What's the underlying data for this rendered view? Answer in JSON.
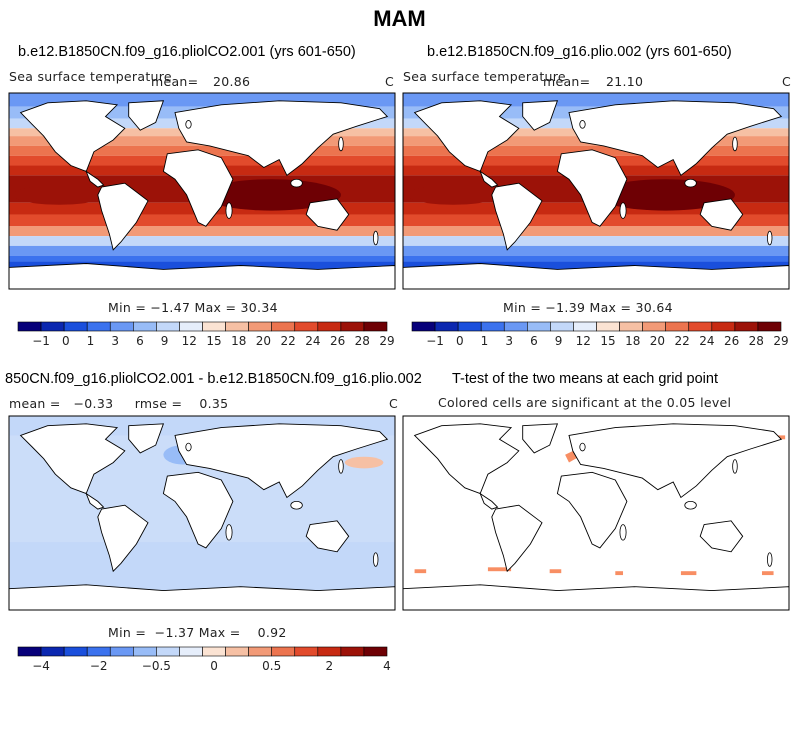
{
  "figure": {
    "title": "MAM"
  },
  "panels": [
    {
      "id": "p1",
      "title": "b.e12.B1850CN.f09_g16.pliolCO2.001 (yrs 601-650)",
      "left_label": "Sea surface temperature",
      "mean_label": "mean=",
      "mean_value": "20.86",
      "units": "C",
      "stats": "Min =  −1.47 Max =   30.34",
      "field": "sst"
    },
    {
      "id": "p2",
      "title": "b.e12.B1850CN.f09_g16.plio.002 (yrs 601-650)",
      "left_label": "Sea surface temperature",
      "mean_label": "mean=",
      "mean_value": "21.10",
      "units": "C",
      "stats": "Min =  −1.39 Max =   30.64",
      "field": "sst"
    },
    {
      "id": "p3",
      "title": "850CN.f09_g16.pliolCO2.001 - b.e12.B1850CN.f09_g16.plio.002",
      "left_label": "mean =   −0.33     rmse =    0.35",
      "units": "C",
      "stats": "Min =  −1.37 Max =    0.92",
      "field": "diff"
    },
    {
      "id": "p4",
      "title": "T-test of the two means at each grid point",
      "subtitle": "Colored cells are significant at the 0.05 level",
      "field": "ttest"
    }
  ],
  "colorbars": {
    "sst": {
      "labels": [
        "−1",
        "0",
        "1",
        "3",
        "6",
        "9",
        "12",
        "15",
        "18",
        "20",
        "22",
        "24",
        "26",
        "28",
        "29"
      ],
      "colors": [
        "#07007a",
        "#0b27b0",
        "#1a4fdc",
        "#3b72ee",
        "#6a98f4",
        "#98bcf7",
        "#c3d8f9",
        "#e6eefb",
        "#fbe3d3",
        "#f6c0a4",
        "#f29a77",
        "#ec744f",
        "#e24b2c",
        "#c72a12",
        "#9c1208",
        "#6e0004"
      ]
    },
    "diff": {
      "labels": [
        "−4",
        "−2",
        "−0.5",
        "0",
        "0.5",
        "2",
        "4"
      ],
      "colors": [
        "#07007a",
        "#0b27b0",
        "#1a4fdc",
        "#3b72ee",
        "#6a98f4",
        "#98bcf7",
        "#c3d8f9",
        "#e6eefb",
        "#fbe3d3",
        "#f6c0a4",
        "#f29a77",
        "#ec744f",
        "#e24b2c",
        "#c72a12",
        "#9c1208",
        "#6e0004"
      ]
    }
  },
  "chart_data": [
    {
      "type": "heatmap",
      "title": "b.e12.B1850CN.f09_g16.pliolCO2.001 (yrs 601-650)",
      "variable": "Sea surface temperature",
      "units": "C",
      "mean": 20.86,
      "min": -1.47,
      "max": 30.34,
      "color_levels": [
        -1,
        0,
        1,
        3,
        6,
        9,
        12,
        15,
        18,
        20,
        22,
        24,
        26,
        28,
        29
      ]
    },
    {
      "type": "heatmap",
      "title": "b.e12.B1850CN.f09_g16.plio.002 (yrs 601-650)",
      "variable": "Sea surface temperature",
      "units": "C",
      "mean": 21.1,
      "min": -1.39,
      "max": 30.64,
      "color_levels": [
        -1,
        0,
        1,
        3,
        6,
        9,
        12,
        15,
        18,
        20,
        22,
        24,
        26,
        28,
        29
      ]
    },
    {
      "type": "heatmap",
      "title": "850CN.f09_g16.pliolCO2.001 - b.e12.B1850CN.f09_g16.plio.002",
      "units": "C",
      "mean": -0.33,
      "rmse": 0.35,
      "min": -1.37,
      "max": 0.92,
      "color_levels": [
        -4,
        -2,
        -0.5,
        0,
        0.5,
        2,
        4
      ]
    },
    {
      "type": "heatmap",
      "title": "T-test of the two means at each grid point",
      "subtitle": "Colored cells are significant at the 0.05 level"
    }
  ]
}
